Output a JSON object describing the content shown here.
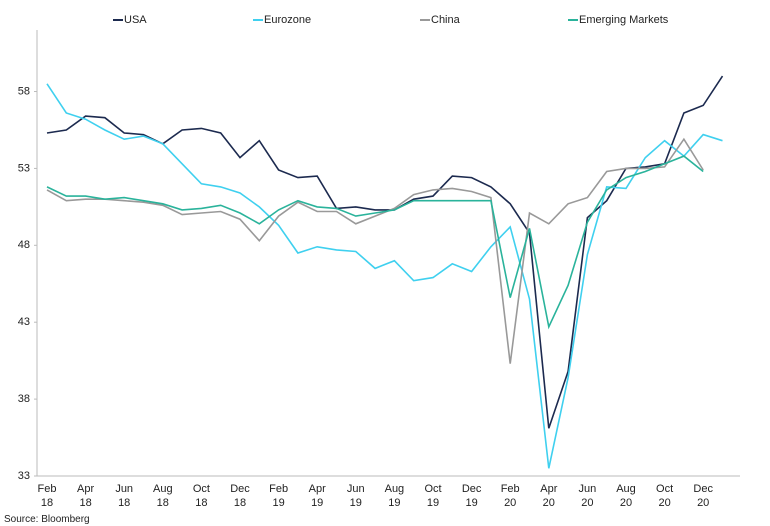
{
  "chart_data": {
    "type": "line",
    "categories": [
      "Feb 18",
      null,
      "Apr 18",
      null,
      "Jun 18",
      null,
      "Aug 18",
      null,
      "Oct 18",
      null,
      "Dec 18",
      null,
      "Feb 19",
      null,
      "Apr 19",
      null,
      "Jun 19",
      null,
      "Aug 19",
      null,
      "Oct 19",
      null,
      "Dec 19",
      null,
      "Feb 20",
      null,
      "Apr 20",
      null,
      "Jun 20",
      null,
      "Aug 20",
      null,
      "Oct 20",
      null,
      "Dec 20",
      null
    ],
    "series": [
      {
        "name": "USA",
        "color": "#1c2a4f",
        "values": [
          55.3,
          55.5,
          56.4,
          56.3,
          55.3,
          55.2,
          54.6,
          55.5,
          55.6,
          55.3,
          53.7,
          54.8,
          52.9,
          52.4,
          52.5,
          50.4,
          50.5,
          50.3,
          50.3,
          51.0,
          51.2,
          52.5,
          52.4,
          51.8,
          50.7,
          48.8,
          36.1,
          39.8,
          49.8,
          50.9,
          53.0,
          53.1,
          53.3,
          56.6,
          57.1,
          59.0
        ]
      },
      {
        "name": "Eurozone",
        "color": "#3fd0ef",
        "values": [
          58.5,
          56.6,
          56.2,
          55.5,
          54.9,
          55.1,
          54.6,
          53.3,
          52.0,
          51.8,
          51.4,
          50.5,
          49.3,
          47.5,
          47.9,
          47.7,
          47.6,
          46.5,
          47.0,
          45.7,
          45.9,
          46.8,
          46.3,
          47.9,
          49.2,
          44.5,
          33.5,
          39.4,
          47.4,
          51.8,
          51.7,
          53.7,
          54.8,
          53.8,
          55.2,
          54.8
        ]
      },
      {
        "name": "China",
        "color": "#999999",
        "values": [
          51.6,
          50.9,
          51.0,
          51.0,
          50.9,
          50.8,
          50.6,
          50.0,
          50.1,
          50.2,
          49.7,
          48.3,
          49.9,
          50.8,
          50.2,
          50.2,
          49.4,
          49.9,
          50.4,
          51.3,
          51.6,
          51.7,
          51.5,
          51.1,
          40.3,
          50.1,
          49.4,
          50.7,
          51.1,
          52.8,
          53.0,
          53.0,
          53.1,
          54.9,
          52.9,
          null
        ]
      },
      {
        "name": "Emerging Markets",
        "color": "#2ab39b",
        "values": [
          51.8,
          51.2,
          51.2,
          51.0,
          51.1,
          50.9,
          50.7,
          50.3,
          50.4,
          50.6,
          50.1,
          49.4,
          50.3,
          50.9,
          50.5,
          50.4,
          49.9,
          50.1,
          50.3,
          50.9,
          50.9,
          50.9,
          50.9,
          50.9,
          44.6,
          49.1,
          42.7,
          45.4,
          49.5,
          51.6,
          52.4,
          52.8,
          53.3,
          53.8,
          52.8,
          null
        ]
      }
    ],
    "ylim": [
      33,
      62
    ],
    "yticks": [
      33,
      38,
      43,
      48,
      53,
      58
    ],
    "source": "Source: Bloomberg"
  }
}
